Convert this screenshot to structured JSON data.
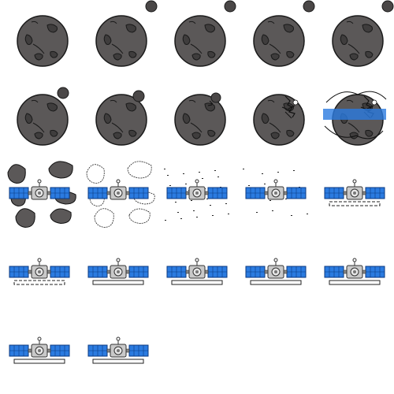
{
  "sprite_sheet": {
    "columns": 5,
    "rows": 5,
    "frame_count": 22,
    "colors": {
      "asteroid_body": "#5b5858",
      "asteroid_outline": "#1a1a1a",
      "asteroid_crater": "#3f3d3d",
      "small_moon": "#4a4747",
      "solar_panel": "#2b7be0",
      "solar_panel_grid": "#0b3a80",
      "satellite_body": "#c9c9c9",
      "platform_outline": "#222222",
      "background": "#ffffff"
    },
    "frames": [
      {
        "phase": "asteroid",
        "moon": "none"
      },
      {
        "phase": "asteroid",
        "moon": "far"
      },
      {
        "phase": "asteroid",
        "moon": "far"
      },
      {
        "phase": "asteroid",
        "moon": "far"
      },
      {
        "phase": "asteroid",
        "moon": "far"
      },
      {
        "phase": "asteroid",
        "moon": "near"
      },
      {
        "phase": "asteroid",
        "moon": "nearer"
      },
      {
        "phase": "asteroid",
        "moon": "impact"
      },
      {
        "phase": "asteroid-crumble",
        "moon": "none"
      },
      {
        "phase": "explosion",
        "moon": "none"
      },
      {
        "phase": "debris",
        "moon": "none"
      },
      {
        "phase": "debris-fading",
        "moon": "none"
      },
      {
        "phase": "satellite-dust",
        "moon": "none"
      },
      {
        "phase": "satellite-dust-light",
        "moon": "none"
      },
      {
        "phase": "satellite-platform-forming",
        "moon": "none"
      },
      {
        "phase": "satellite-platform-forming",
        "moon": "none"
      },
      {
        "phase": "satellite",
        "moon": "none"
      },
      {
        "phase": "satellite",
        "moon": "none"
      },
      {
        "phase": "satellite",
        "moon": "none"
      },
      {
        "phase": "satellite",
        "moon": "none"
      },
      {
        "phase": "satellite",
        "moon": "none"
      },
      {
        "phase": "satellite",
        "moon": "none"
      }
    ]
  }
}
